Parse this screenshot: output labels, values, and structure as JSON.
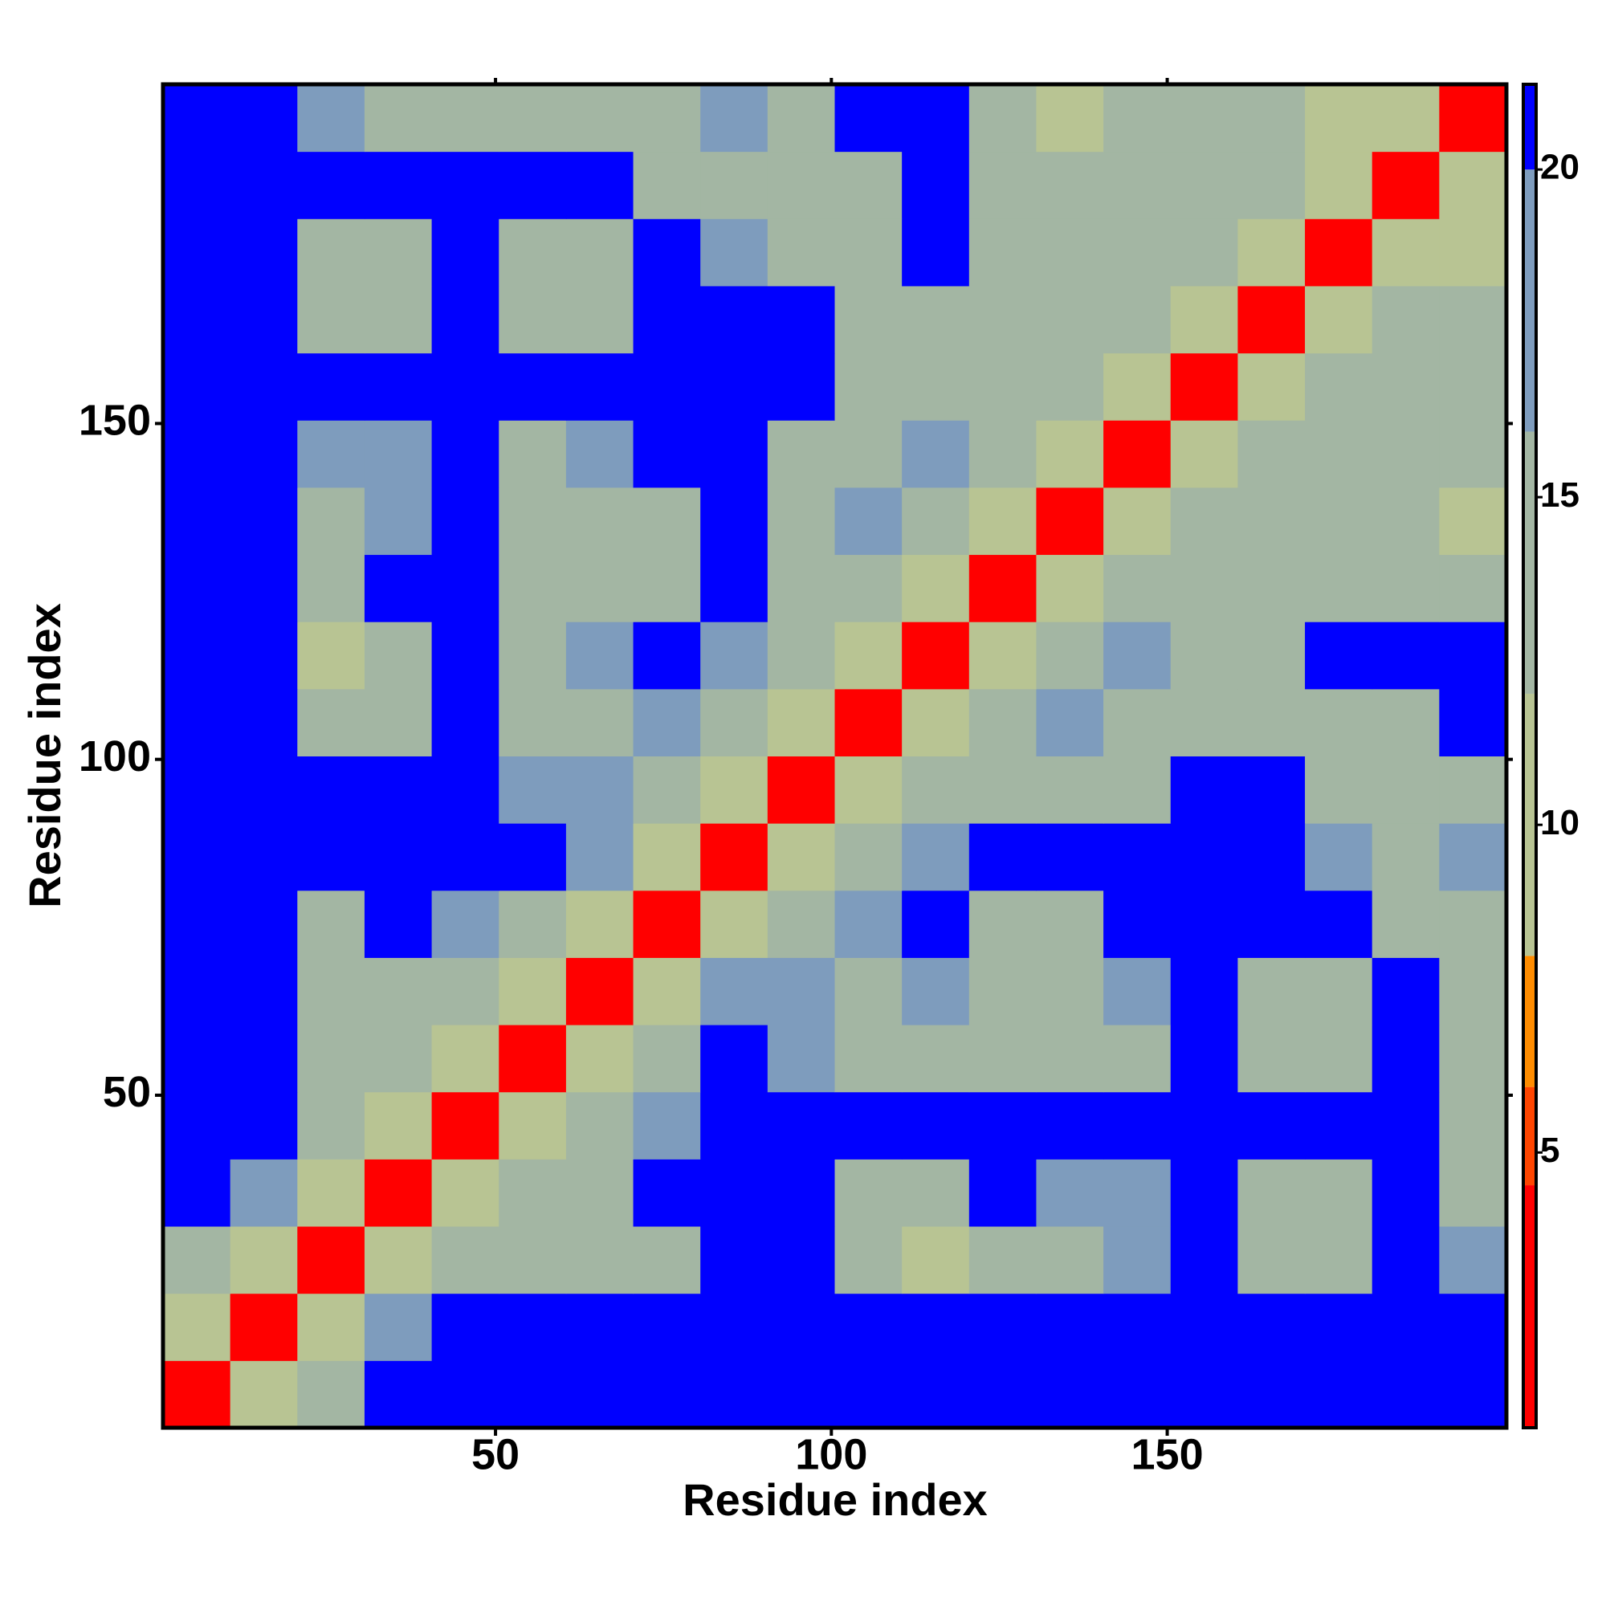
{
  "chart_data": {
    "type": "heatmap",
    "x_label": "Residue index",
    "y_label": "Residue index",
    "x": [
      5.5,
      15.5,
      25.5,
      35.5,
      45.5,
      55.5,
      65.5,
      75.5,
      85.5,
      95.5,
      105.5,
      115.5,
      125.5,
      135.5,
      145.5,
      155.5,
      165.5,
      175.5,
      185.5,
      195.5
    ],
    "y": [
      5.5,
      15.5,
      25.5,
      35.5,
      45.5,
      55.5,
      65.5,
      75.5,
      85.5,
      95.5,
      105.5,
      115.5,
      125.5,
      135.5,
      145.5,
      155.5,
      165.5,
      175.5,
      185.5,
      195.5
    ],
    "z": [
      [
        4,
        12,
        15,
        21,
        21,
        21,
        21,
        21,
        21,
        21,
        21,
        21,
        21,
        21,
        21,
        21,
        21,
        21,
        21,
        21
      ],
      [
        12,
        4,
        12,
        18,
        21,
        21,
        21,
        21,
        21,
        21,
        21,
        21,
        21,
        21,
        21,
        21,
        21,
        21,
        21,
        21
      ],
      [
        15,
        12,
        4,
        12,
        14,
        13,
        14,
        16,
        21,
        21,
        14,
        10,
        15,
        16,
        17,
        21,
        14,
        15,
        21,
        17
      ],
      [
        21,
        18,
        12,
        4,
        12,
        14,
        16,
        21,
        21,
        21,
        16,
        15,
        21,
        17,
        17,
        21,
        13,
        15,
        21,
        14
      ],
      [
        21,
        21,
        14,
        12,
        4,
        11,
        14,
        18,
        21,
        21,
        21,
        21,
        21,
        21,
        21,
        21,
        21,
        21,
        21,
        14
      ],
      [
        21,
        21,
        13,
        14,
        11,
        4,
        11,
        14,
        21,
        17,
        15,
        14,
        15,
        13,
        16,
        21,
        13,
        14,
        21,
        14
      ],
      [
        21,
        21,
        14,
        16,
        14,
        11,
        4,
        11,
        17,
        18,
        16,
        17,
        14,
        13,
        17,
        21,
        14,
        16,
        21,
        15
      ],
      [
        21,
        21,
        16,
        21,
        18,
        14,
        11,
        4,
        12,
        15,
        18,
        21,
        16,
        14,
        21,
        21,
        21,
        21,
        15,
        16
      ],
      [
        21,
        21,
        21,
        21,
        21,
        21,
        17,
        12,
        4,
        12,
        15,
        17,
        21,
        21,
        21,
        21,
        21,
        17,
        14,
        17
      ],
      [
        21,
        21,
        21,
        21,
        21,
        17,
        18,
        15,
        12,
        4,
        12,
        15,
        14,
        14,
        13,
        21,
        21,
        16,
        16,
        16
      ],
      [
        21,
        21,
        14,
        16,
        21,
        15,
        16,
        18,
        15,
        12,
        4,
        12,
        14,
        17,
        15,
        15,
        13,
        15,
        15,
        21
      ],
      [
        21,
        21,
        10,
        15,
        21,
        14,
        17,
        21,
        17,
        15,
        12,
        4,
        12,
        14,
        17,
        14,
        14,
        21,
        21,
        21
      ],
      [
        21,
        21,
        15,
        21,
        21,
        15,
        14,
        16,
        21,
        14,
        14,
        12,
        4,
        12,
        16,
        14,
        13,
        14,
        14,
        14
      ],
      [
        21,
        21,
        16,
        17,
        21,
        13,
        13,
        14,
        21,
        14,
        17,
        14,
        12,
        4,
        12,
        13,
        14,
        15,
        14,
        12
      ],
      [
        21,
        21,
        17,
        17,
        21,
        16,
        17,
        21,
        21,
        13,
        15,
        17,
        16,
        12,
        4,
        12,
        14,
        13,
        13,
        14
      ],
      [
        21,
        21,
        21,
        21,
        21,
        21,
        21,
        21,
        21,
        21,
        15,
        14,
        14,
        13,
        12,
        4,
        11,
        14,
        14,
        15
      ],
      [
        21,
        21,
        14,
        13,
        21,
        13,
        14,
        21,
        21,
        21,
        13,
        14,
        13,
        14,
        14,
        11,
        4,
        11,
        14,
        13
      ],
      [
        21,
        21,
        15,
        15,
        21,
        14,
        16,
        21,
        17,
        16,
        15,
        21,
        14,
        15,
        13,
        14,
        11,
        4,
        12,
        12
      ],
      [
        21,
        21,
        21,
        21,
        21,
        21,
        21,
        15,
        14,
        16,
        15,
        21,
        14,
        14,
        13,
        14,
        14,
        12,
        4,
        12
      ],
      [
        21,
        21,
        17,
        14,
        14,
        14,
        15,
        16,
        17,
        16,
        21,
        21,
        14,
        12,
        14,
        15,
        13,
        12,
        12,
        4
      ]
    ],
    "xlim": [
      0.5,
      200.5
    ],
    "ylim": [
      0.5,
      200.5
    ],
    "xticks": [
      50,
      100,
      150
    ],
    "yticks": [
      50,
      100,
      150
    ],
    "colorbar_lim": [
      0.8,
      21.3
    ],
    "colorbar_ticks": [
      5,
      10,
      15,
      20
    ],
    "colorscale": [
      [
        4.5,
        "#ff0000"
      ],
      [
        6,
        "#ff4500"
      ],
      [
        8,
        "#ff8c00"
      ],
      [
        12,
        "#b8c493"
      ],
      [
        16,
        "#a3b6a3"
      ],
      [
        20,
        "#7e9cbd"
      ],
      [
        21.3,
        "#0000ff"
      ]
    ]
  }
}
